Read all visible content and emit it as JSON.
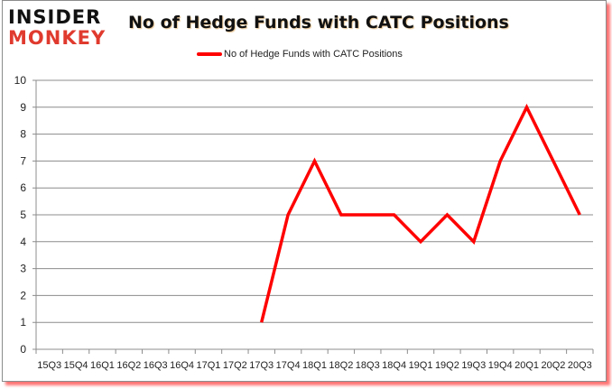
{
  "logo": {
    "line1": "INSIDER",
    "line2": "MONKEY"
  },
  "title": "No of Hedge Funds with CATC Positions",
  "legend": {
    "label": "No of Hedge Funds with CATC Positions",
    "color": "#ff0000"
  },
  "colors": {
    "line": "#ff0000",
    "grid": "#8c8c8c",
    "logo_red": "#e03a2e"
  },
  "chart_data": {
    "type": "line",
    "title": "No of Hedge Funds with CATC Positions",
    "xlabel": "",
    "ylabel": "",
    "ylim": [
      0,
      10
    ],
    "yticks": [
      0,
      1,
      2,
      3,
      4,
      5,
      6,
      7,
      8,
      9,
      10
    ],
    "grid": true,
    "legend_position": "top",
    "categories": [
      "15Q3",
      "15Q4",
      "16Q1",
      "16Q2",
      "16Q3",
      "16Q4",
      "17Q1",
      "17Q2",
      "17Q3",
      "17Q4",
      "18Q1",
      "18Q2",
      "18Q3",
      "18Q4",
      "19Q1",
      "19Q2",
      "19Q3",
      "19Q4",
      "20Q1",
      "20Q2",
      "20Q3"
    ],
    "series": [
      {
        "name": "No of Hedge Funds with CATC Positions",
        "values": [
          null,
          null,
          null,
          null,
          null,
          null,
          null,
          null,
          1,
          5,
          7,
          5,
          5,
          5,
          4,
          5,
          4,
          7,
          9,
          7,
          5
        ]
      }
    ]
  }
}
